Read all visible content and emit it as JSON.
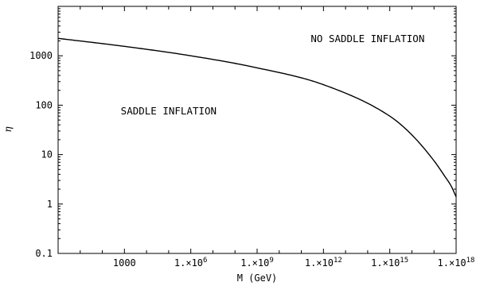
{
  "chart_data": {
    "type": "line",
    "xlabel": "M (GeV)",
    "ylabel": "η",
    "xscale": "log",
    "yscale": "log",
    "xlim": [
      1,
      1e+18
    ],
    "ylim": [
      0.1,
      10000
    ],
    "grid": false,
    "x_ticks": [
      {
        "value": 1000,
        "base": "1000",
        "exp": ""
      },
      {
        "value": 1000000,
        "base": "1.×10",
        "exp": "6"
      },
      {
        "value": 1000000000,
        "base": "1.×10",
        "exp": "9"
      },
      {
        "value": 1000000000000,
        "base": "1.×10",
        "exp": "12"
      },
      {
        "value": 1000000000000000,
        "base": "1.×10",
        "exp": "15"
      },
      {
        "value": 1000000000000000000,
        "base": "1.×10",
        "exp": "18"
      }
    ],
    "y_ticks": [
      {
        "value": 0.1,
        "label": "0.1"
      },
      {
        "value": 1,
        "label": "1"
      },
      {
        "value": 10,
        "label": "10"
      },
      {
        "value": 100,
        "label": "100"
      },
      {
        "value": 1000,
        "label": "1000"
      }
    ],
    "series": [
      {
        "x": [
          1,
          1000,
          1000000,
          1000000000,
          1000000000000,
          1000000000000000,
          1e+16,
          1e+17,
          3e+17,
          6e+17,
          1e+18
        ],
        "y": [
          2250,
          1550,
          1000,
          570,
          260,
          60,
          25,
          7.5,
          3.7,
          2.3,
          1.4
        ]
      }
    ],
    "annotations": [
      {
        "text": "NO SADDLE INFLATION",
        "x": 100000000000000.0,
        "y": 1900
      },
      {
        "text": "SADDLE INFLATION",
        "x": 100000.0,
        "y": 65
      }
    ]
  }
}
